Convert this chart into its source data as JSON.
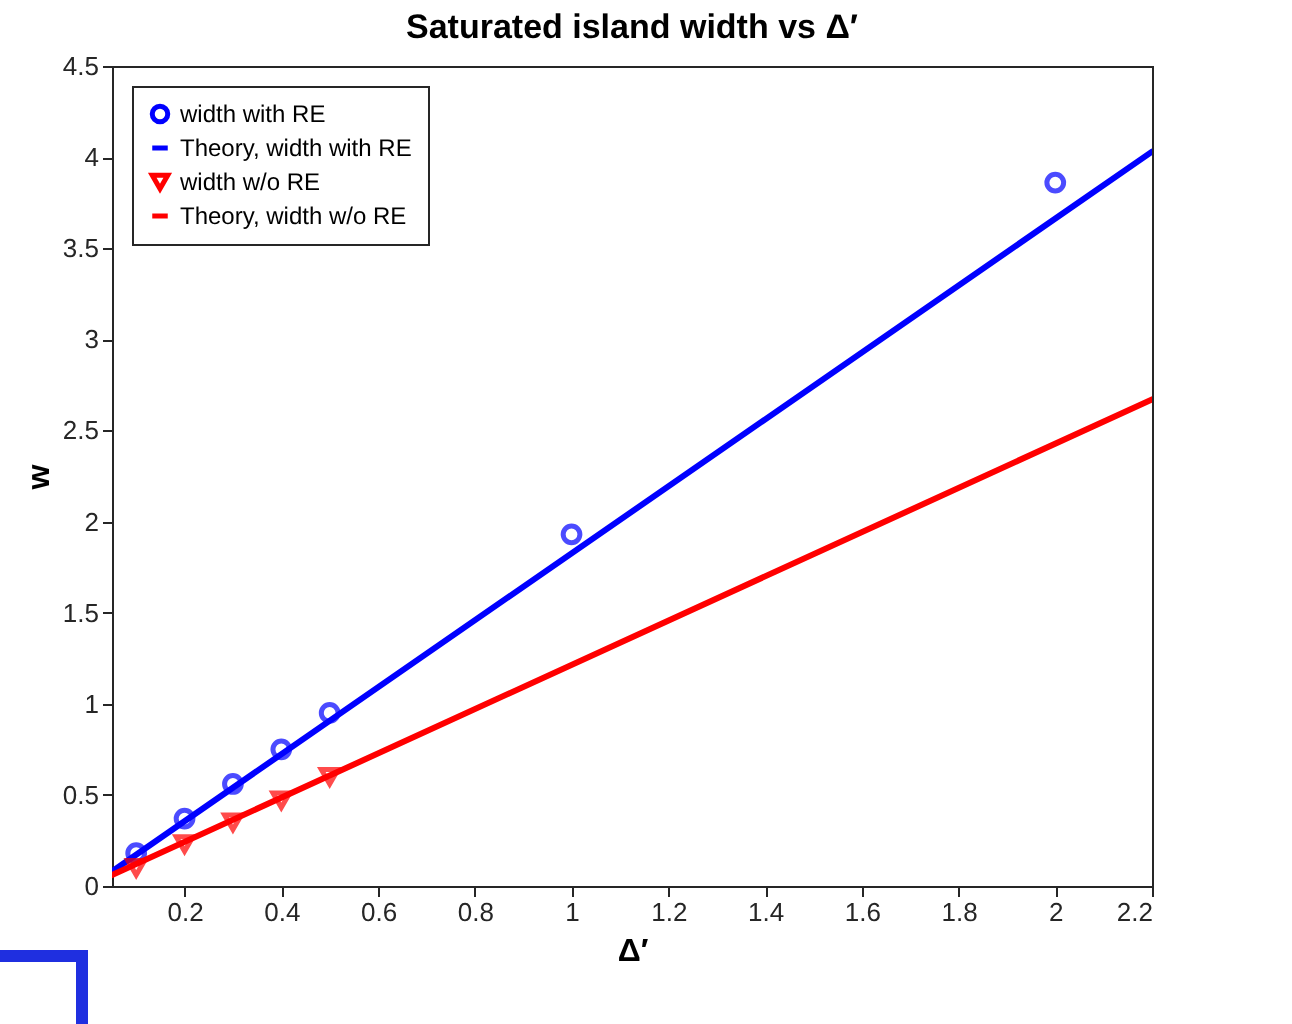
{
  "chart_data": {
    "type": "scatter",
    "title": "Saturated island width vs Δ′",
    "xlabel": "Δ′",
    "ylabel": "w",
    "xlim": [
      0.05,
      2.2
    ],
    "xticks": [
      0.2,
      0.4,
      0.6,
      0.8,
      1,
      1.2,
      1.4,
      1.6,
      1.8,
      2,
      2.2
    ],
    "ylim": [
      0,
      4.5
    ],
    "yticks": [
      0,
      0.5,
      1,
      1.5,
      2,
      2.5,
      3,
      3.5,
      4,
      4.5
    ],
    "legend": "top left",
    "grid": false,
    "series": [
      {
        "name": "width with RE",
        "marker": "circle",
        "color": "#0000ff",
        "x": [
          0.1,
          0.2,
          0.3,
          0.4,
          0.5,
          1,
          2
        ],
        "values": [
          0.18,
          0.37,
          0.56,
          0.75,
          0.95,
          1.93,
          3.86
        ]
      },
      {
        "name": "Theory, width with RE",
        "type": "line",
        "marker": "none",
        "line_style": "solid",
        "color": "#0000ff",
        "x": [
          0.05,
          2.2
        ],
        "values": [
          0.08,
          4.03
        ]
      },
      {
        "name": "width w/o RE",
        "marker": "triangle",
        "color": "#ff0000",
        "x": [
          0.1,
          0.2,
          0.3,
          0.4,
          0.5
        ],
        "values": [
          0.1,
          0.23,
          0.35,
          0.47,
          0.6
        ]
      },
      {
        "name": "Theory, width w/o RE",
        "type": "line",
        "marker": "none",
        "line_style": "solid",
        "color": "#ff0000",
        "x": [
          0.05,
          2.2
        ],
        "values": [
          0.06,
          2.67
        ]
      }
    ]
  }
}
